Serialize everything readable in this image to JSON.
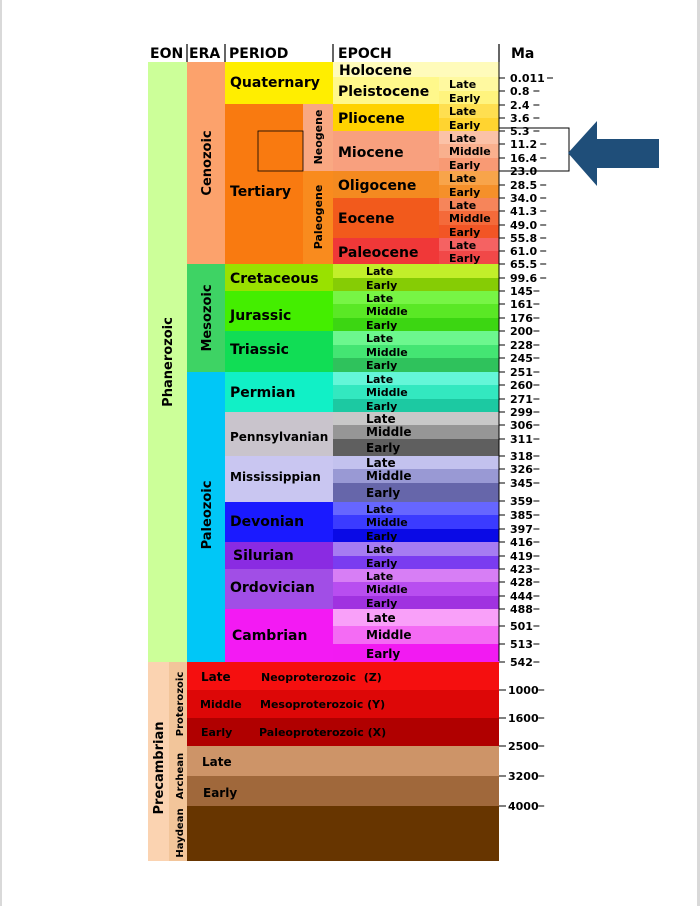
{
  "headers": {
    "eon": "EON",
    "era": "ERA",
    "period": "PERIOD",
    "epoch": "EPOCH",
    "ma": "Ma"
  },
  "eons": {
    "phanerozoic": "Phanerozoic",
    "precambrian": "Precambrian"
  },
  "eras": {
    "cenozoic": "Cenozoic",
    "mesozoic": "Mesozoic",
    "paleozoic": "Paleozoic",
    "proterozoic": "Proterozoic",
    "archean": "Archean",
    "haydean": "Haydean"
  },
  "periods": {
    "quaternary": "Quaternary",
    "tertiary": "Tertiary",
    "neogene": "Neogene",
    "paleogene": "Paleogene",
    "cretaceous": "Cretaceous",
    "jurassic": "Jurassic",
    "triassic": "Triassic",
    "permian": "Permian",
    "pennsylvanian": "Pennsylvanian",
    "mississippian": "Mississippian",
    "devonian": "Devonian",
    "silurian": "Silurian",
    "ordovician": "Ordovician",
    "cambrian": "Cambrian"
  },
  "epochs": {
    "holocene": "Holocene",
    "pleistocene": "Pleistocene",
    "pliocene": "Pliocene",
    "miocene": "Miocene",
    "oligocene": "Oligocene",
    "eocene": "Eocene",
    "paleocene": "Paleocene"
  },
  "subdivisions": {
    "late": "Late",
    "middle": "Middle",
    "early": "Early"
  },
  "proterozoic_rows": {
    "neo": "Neoproterozoic  (Z)",
    "meso": "Mesoproterozoic (Y)",
    "paleo": "Paleoproterozoic (X)"
  },
  "ma_labels": [
    "0.011",
    "0.8",
    "2.4",
    "3.6",
    "5.3",
    "11.2",
    "16.4",
    "23.0",
    "28.5",
    "34.0",
    "41.3",
    "49.0",
    "55.8",
    "61.0",
    "65.5",
    "99.6",
    "145",
    "161",
    "176",
    "200",
    "228",
    "245",
    "251",
    "260",
    "271",
    "299",
    "306",
    "311",
    "318",
    "326",
    "345",
    "359",
    "385",
    "397",
    "416",
    "419",
    "423",
    "428",
    "444",
    "488",
    "501",
    "513",
    "542",
    "1000",
    "1600",
    "2500",
    "3200",
    "4000"
  ],
  "colors": {
    "phanerozoic": "#ccff99",
    "precambrian": "#fbd3b1",
    "cenozoic": "#fca26c",
    "mesozoic": "#3ed364",
    "paleozoic": "#00c7f7",
    "quaternary": "#ffee00",
    "tertiary": "#f97a10",
    "cretaceous": "#99e100",
    "jurassic": "#44ee00",
    "triassic": "#11dd55",
    "permian": "#11f0c6",
    "pennsylvanian": "#c9c4cc",
    "mississippian": "#c9c6f1",
    "devonian": "#1a1aff",
    "silurian": "#8a2be2",
    "ordovician": "#a14ee6",
    "cambrian": "#f31af3",
    "proterozoic_late": "#f50f0f",
    "proterozoic_middle": "#dd0707",
    "proterozoic_early": "#b00000",
    "archean_late": "#cd9468",
    "archean_early": "#a0683b",
    "haydean": "#673500",
    "arrow": "#1f4e79"
  },
  "arrow_icon": "arrow-left-icon"
}
